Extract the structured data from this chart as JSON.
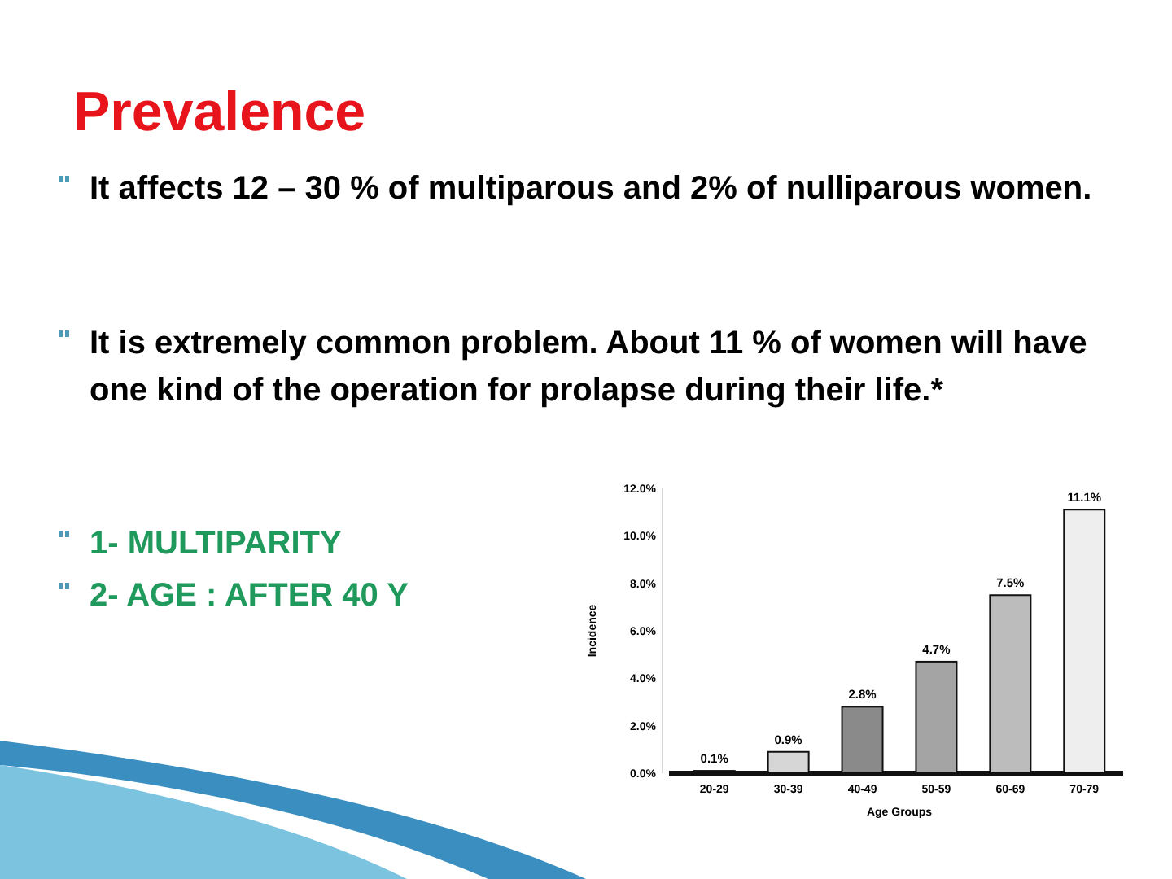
{
  "chart_data": {
    "type": "bar",
    "title": "Prevalence",
    "annotations": [
      "It affects 12 – 30 % of multiparous and 2% of nulliparous women.",
      "It is extremely common problem. About 11 % of women will have one kind of the operation for prolapse during their life.*",
      "1- MULTIPARITY",
      "2- AGE : AFTER 40 Y"
    ],
    "xlabel": "Age Groups",
    "ylabel": "Incidence",
    "categories": [
      "20-29",
      "30-39",
      "40-49",
      "50-59",
      "60-69",
      "70-79"
    ],
    "values": [
      0.1,
      0.9,
      2.8,
      4.7,
      7.5,
      11.1
    ],
    "value_labels": [
      "0.1%",
      "0.9%",
      "2.8%",
      "4.7%",
      "7.5%",
      "11.1%"
    ],
    "colors": [
      "#2a2a2a",
      "#d6d6d6",
      "#8a8a8a",
      "#a4a4a4",
      "#bcbcbc",
      "#eeeeee"
    ],
    "ylim": [
      0,
      12
    ],
    "yticks": [
      {
        "value": 0,
        "label": "0.0%"
      },
      {
        "value": 2,
        "label": "2.0%"
      },
      {
        "value": 4,
        "label": "4.0%"
      },
      {
        "value": 6,
        "label": "6.0%"
      },
      {
        "value": 8,
        "label": "8.0%"
      },
      {
        "value": 10,
        "label": "10.0%"
      },
      {
        "value": 12,
        "label": "12.0%"
      }
    ],
    "grid": false
  }
}
